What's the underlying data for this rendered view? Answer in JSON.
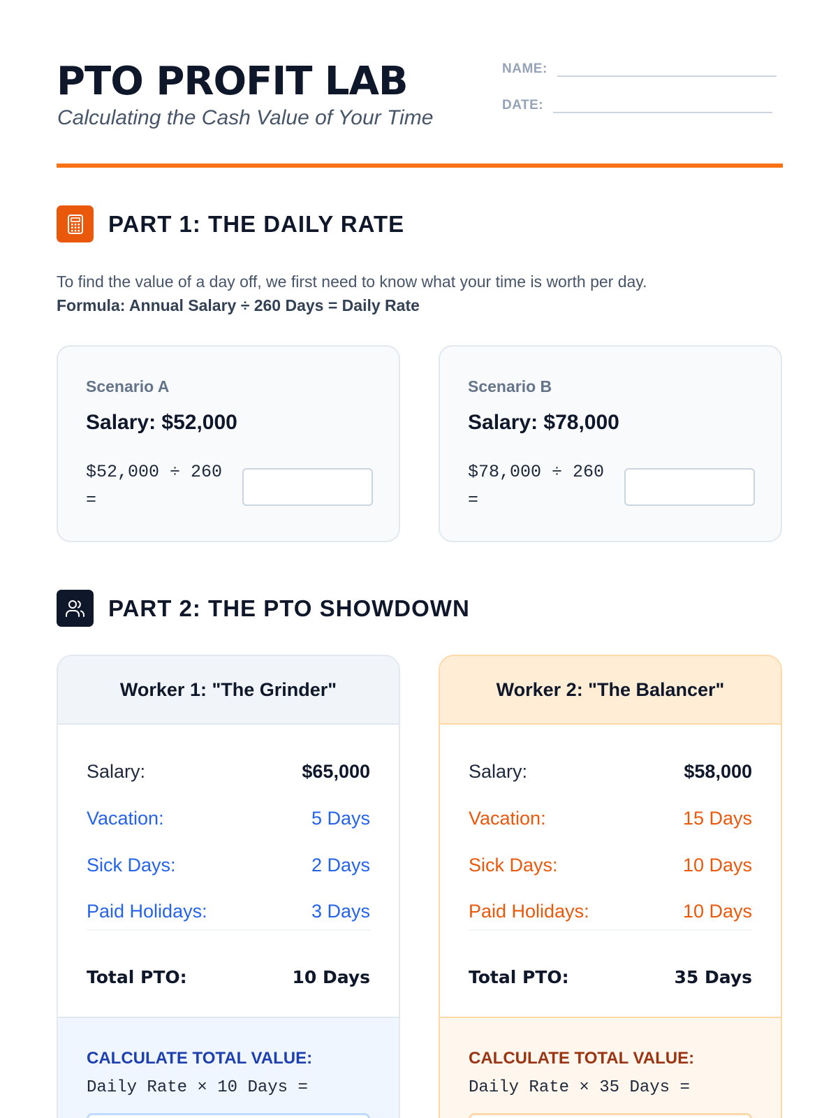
{
  "header": {
    "title": "PTO PROFIT LAB",
    "subtitle": "Calculating the Cash Value of Your Time",
    "name_label": "NAME:",
    "date_label": "DATE:"
  },
  "colors": {
    "accent": "#f97316",
    "orange": "#ea580c",
    "blue": "#2563eb",
    "navy": "#0f172a"
  },
  "part1": {
    "icon": "calculator-icon",
    "title": "PART 1: THE DAILY RATE",
    "intro": "To find the value of a day off, we first need to know what your time is worth per day.",
    "formula": "Formula: Annual Salary ÷ 260 Days = Daily Rate",
    "scenarios": [
      {
        "label": "Scenario A",
        "salary": "Salary: $52,000",
        "calc": "$52,000 ÷ 260 ="
      },
      {
        "label": "Scenario B",
        "salary": "Salary: $78,000",
        "calc": "$78,000 ÷ 260 ="
      }
    ]
  },
  "part2": {
    "icon": "users-icon",
    "title": "PART 2: THE PTO SHOWDOWN",
    "workers": [
      {
        "name": "Worker 1: \"The Grinder\"",
        "salary_label": "Salary:",
        "salary": "$65,000",
        "items": [
          {
            "label": "Vacation:",
            "value": "5 Days"
          },
          {
            "label": "Sick Days:",
            "value": "2 Days"
          },
          {
            "label": "Paid Holidays:",
            "value": "3 Days"
          }
        ],
        "total_label": "Total PTO:",
        "total": "10 Days",
        "calc_title": "CALCULATE TOTAL VALUE:",
        "calc": "Daily Rate × 10 Days ="
      },
      {
        "name": "Worker 2: \"The Balancer\"",
        "salary_label": "Salary:",
        "salary": "$58,000",
        "items": [
          {
            "label": "Vacation:",
            "value": "15 Days"
          },
          {
            "label": "Sick Days:",
            "value": "10 Days"
          },
          {
            "label": "Paid Holidays:",
            "value": "10 Days"
          }
        ],
        "total_label": "Total PTO:",
        "total": "35 Days",
        "calc_title": "CALCULATE TOTAL VALUE:",
        "calc": "Daily Rate × 35 Days ="
      }
    ]
  }
}
